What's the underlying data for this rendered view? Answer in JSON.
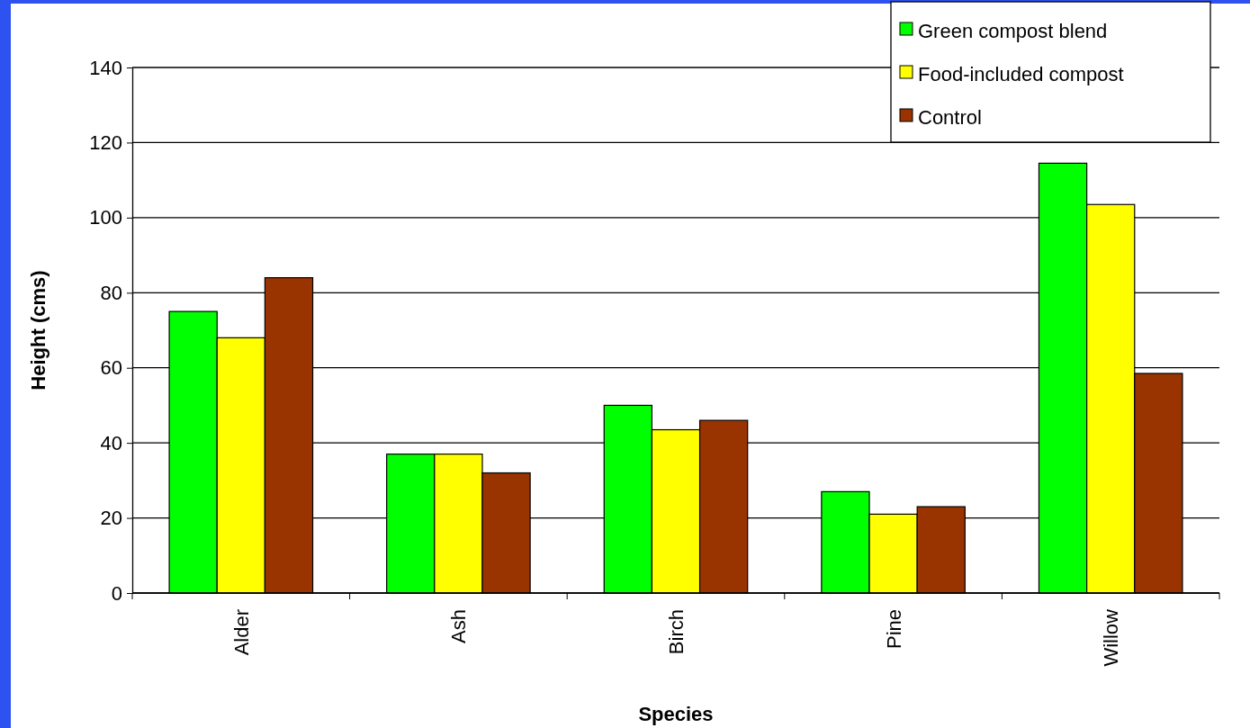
{
  "chart_data": {
    "type": "bar",
    "xlabel": "Species",
    "ylabel": "Height (cms)",
    "categories": [
      "Alder",
      "Ash",
      "Birch",
      "Pine",
      "Willow"
    ],
    "series": [
      {
        "name": "Green compost blend",
        "color": "#00ff00",
        "values": [
          75,
          37,
          50,
          27,
          114.5
        ]
      },
      {
        "name": "Food-included compost",
        "color": "#ffff00",
        "values": [
          68,
          37,
          43.5,
          21,
          103.5
        ]
      },
      {
        "name": "Control",
        "color": "#993300",
        "values": [
          84,
          32,
          46,
          23,
          58.5
        ]
      }
    ],
    "ylim": [
      0,
      140
    ],
    "yticks": [
      0,
      20,
      40,
      60,
      80,
      100,
      120,
      140
    ],
    "grid": "y",
    "legend": "top right"
  }
}
